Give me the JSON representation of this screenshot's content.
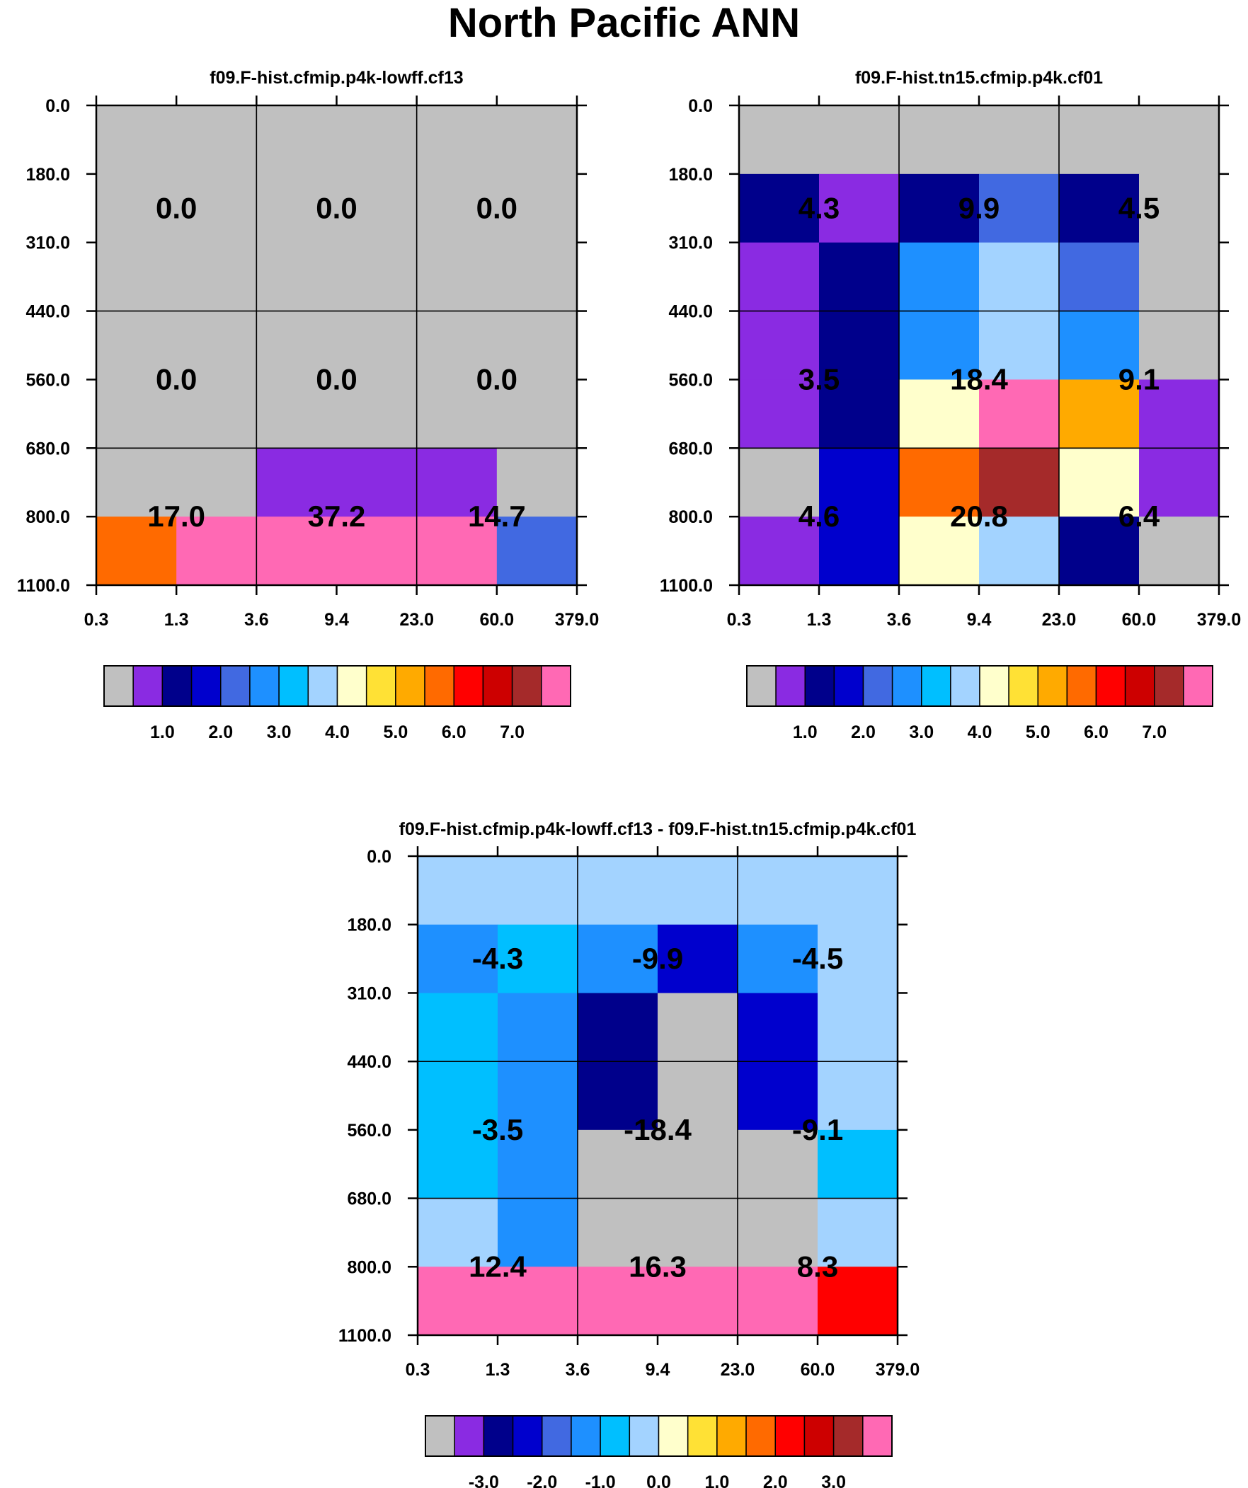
{
  "title": "North Pacific ANN",
  "palette": [
    "#c0c0c0",
    "#8a2be2",
    "#00008b",
    "#0000cd",
    "#4169e1",
    "#1e90ff",
    "#00bfff",
    "#a3d3ff",
    "#ffffcc",
    "#ffe135",
    "#ffaa00",
    "#ff6a00",
    "#ff0000",
    "#cd0000",
    "#a52a2a",
    "#ff69b4"
  ],
  "chart_data": [
    {
      "type": "heatmap",
      "title": "f09.F-hist.cfmip.p4k-lowff.cf13",
      "x_tick_labels": [
        "0.3",
        "1.3",
        "3.6",
        "9.4",
        "23.0",
        "60.0",
        "379.0"
      ],
      "y_tick_labels": [
        "0.0",
        "180.0",
        "310.0",
        "440.0",
        "560.0",
        "680.0",
        "800.0",
        "1100.0"
      ],
      "cell_color_index": [
        [
          0,
          0,
          0,
          0,
          0,
          0
        ],
        [
          0,
          0,
          0,
          0,
          0,
          0
        ],
        [
          0,
          0,
          0,
          0,
          0,
          0
        ],
        [
          0,
          0,
          0,
          0,
          0,
          0
        ],
        [
          0,
          0,
          0,
          0,
          0,
          0
        ],
        [
          0,
          0,
          1,
          1,
          1,
          0
        ],
        [
          11,
          15,
          15,
          15,
          15,
          4
        ]
      ],
      "section_labels": [
        [
          "0.0",
          "0.0",
          "0.0"
        ],
        [
          "0.0",
          "0.0",
          "0.0"
        ],
        [
          "17.0",
          "37.2",
          "14.7"
        ]
      ],
      "colorbar_labels": [
        "1.0",
        "2.0",
        "3.0",
        "4.0",
        "5.0",
        "6.0",
        "7.0"
      ]
    },
    {
      "type": "heatmap",
      "title": "f09.F-hist.tn15.cfmip.p4k.cf01",
      "x_tick_labels": [
        "0.3",
        "1.3",
        "3.6",
        "9.4",
        "23.0",
        "60.0",
        "379.0"
      ],
      "y_tick_labels": [
        "0.0",
        "180.0",
        "310.0",
        "440.0",
        "560.0",
        "680.0",
        "800.0",
        "1100.0"
      ],
      "cell_color_index": [
        [
          0,
          0,
          0,
          0,
          0,
          0
        ],
        [
          2,
          1,
          2,
          4,
          2,
          0
        ],
        [
          1,
          2,
          5,
          7,
          4,
          0
        ],
        [
          1,
          2,
          5,
          7,
          5,
          0
        ],
        [
          1,
          2,
          8,
          15,
          10,
          1
        ],
        [
          0,
          3,
          11,
          14,
          8,
          1
        ],
        [
          1,
          3,
          8,
          7,
          2,
          0
        ]
      ],
      "section_labels": [
        [
          "4.3",
          "9.9",
          "4.5"
        ],
        [
          "3.5",
          "18.4",
          "9.1"
        ],
        [
          "4.6",
          "20.8",
          "6.4"
        ]
      ],
      "colorbar_labels": [
        "1.0",
        "2.0",
        "3.0",
        "4.0",
        "5.0",
        "6.0",
        "7.0"
      ]
    },
    {
      "type": "heatmap",
      "title": "f09.F-hist.cfmip.p4k-lowff.cf13 - f09.F-hist.tn15.cfmip.p4k.cf01",
      "x_tick_labels": [
        "0.3",
        "1.3",
        "3.6",
        "9.4",
        "23.0",
        "60.0",
        "379.0"
      ],
      "y_tick_labels": [
        "0.0",
        "180.0",
        "310.0",
        "440.0",
        "560.0",
        "680.0",
        "800.0",
        "1100.0"
      ],
      "cell_color_index": [
        [
          7,
          7,
          7,
          7,
          7,
          7
        ],
        [
          5,
          6,
          5,
          3,
          5,
          7
        ],
        [
          6,
          5,
          2,
          0,
          3,
          7
        ],
        [
          6,
          5,
          2,
          0,
          3,
          7
        ],
        [
          6,
          5,
          0,
          0,
          0,
          6
        ],
        [
          7,
          5,
          0,
          0,
          0,
          7
        ],
        [
          15,
          15,
          15,
          15,
          15,
          12
        ]
      ],
      "section_labels": [
        [
          "-4.3",
          "-9.9",
          "-4.5"
        ],
        [
          "-3.5",
          "-18.4",
          "-9.1"
        ],
        [
          "12.4",
          "16.3",
          "8.3"
        ]
      ],
      "colorbar_labels": [
        "-3.0",
        "-2.0",
        "-1.0",
        "0.0",
        "1.0",
        "2.0",
        "3.0"
      ]
    }
  ]
}
